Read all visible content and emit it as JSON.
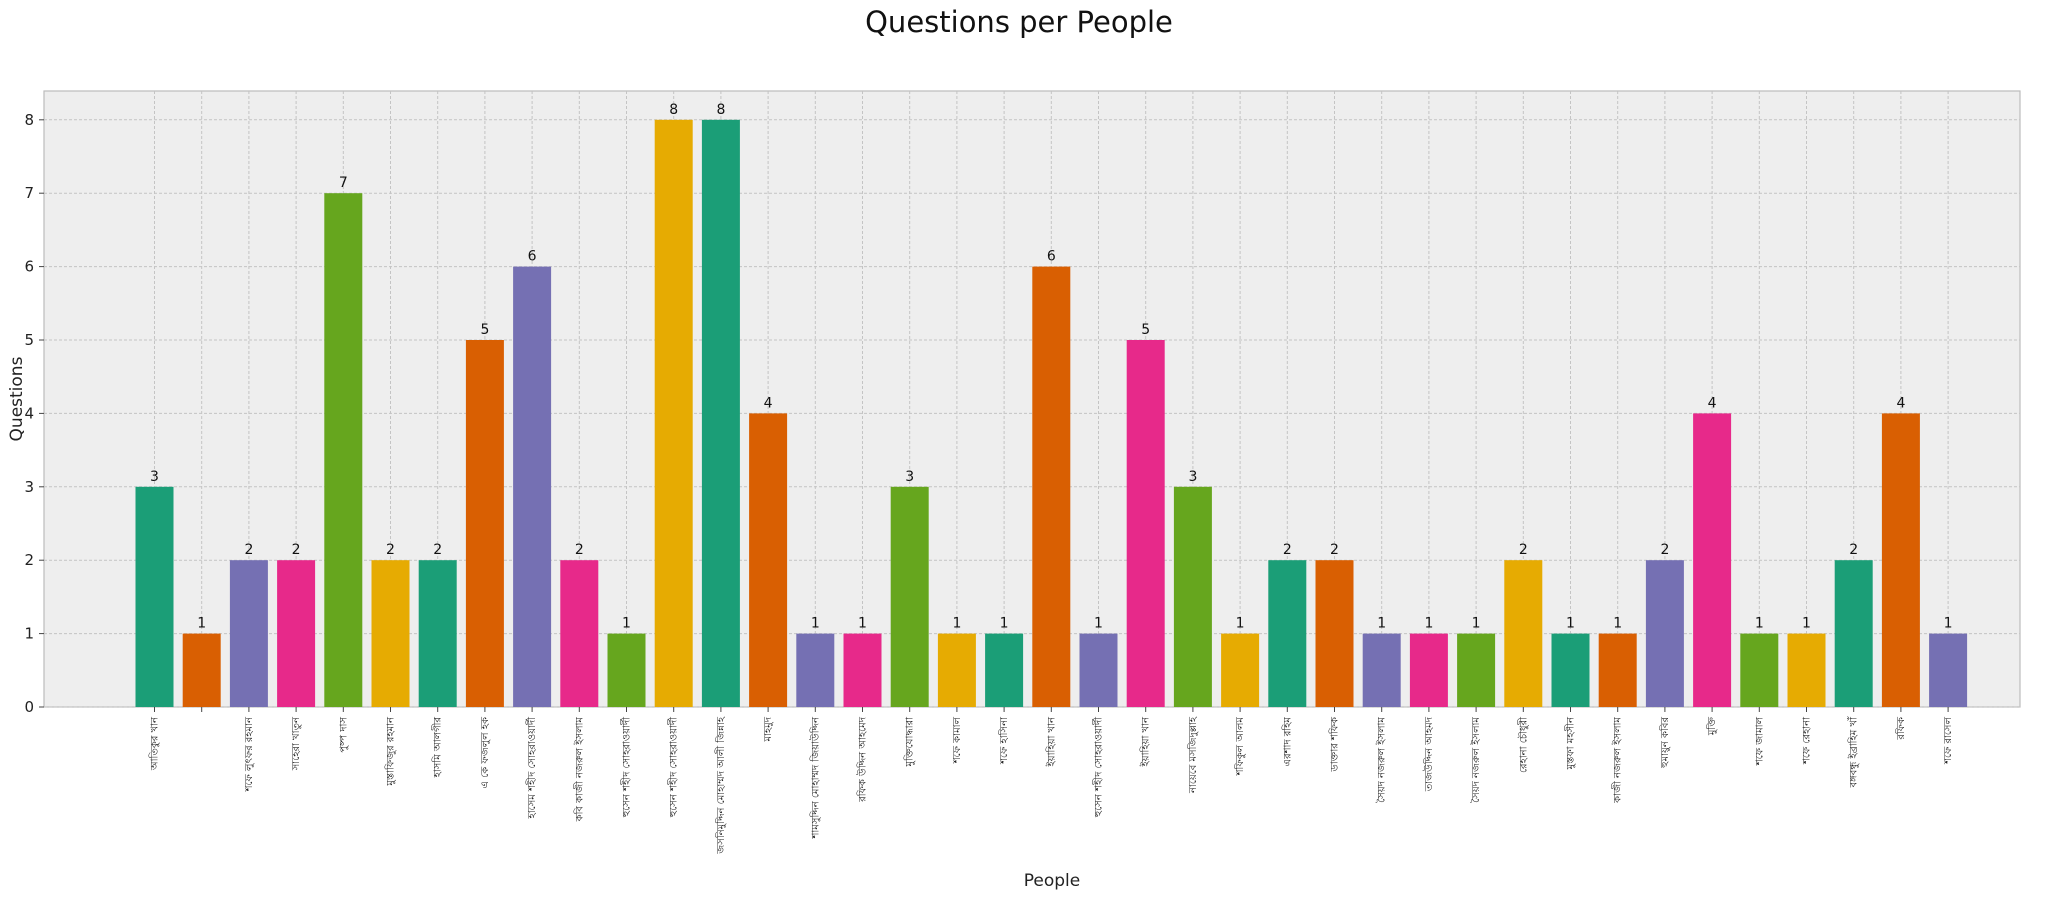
{
  "chart_data": {
    "type": "bar",
    "title": "Questions per People",
    "xlabel": "People",
    "ylabel": "Questions",
    "ylim": [
      0,
      8.4
    ],
    "yticks": [
      0,
      1,
      2,
      3,
      4,
      5,
      6,
      7,
      8
    ],
    "grid": true,
    "legend": "none",
    "palette": [
      "#1b9e77",
      "#d95f02",
      "#7570b3",
      "#e7298a",
      "#66a61e",
      "#e6ab02"
    ],
    "background": "#eeeeee",
    "categories": [
      "আতিকুর খান",
      "",
      "শফে লুৎফর রহমান",
      "সাহেরা খাতুন",
      "পুষ্প দাস",
      "মুস্তাফিজুর রহমান",
      "হাসমি আলগীর",
      "এ কে ফজলুল হক",
      "হাসেম শহীদ সোহরাওয়ার্দী",
      "কবি কাজী নজরুল ইসলাম",
      "হুসেন শহীদ সোহরাওয়ার্দী",
      "হুসেন শহীদ সোহরাওয়ার্দী",
      "জসনিমুদ্দিন মোহাম্মদ আলী জিন্নাহ",
      "মাহমুদ",
      "শামসুদ্দিন মোহাম্মদ জিয়াউদ্দিন",
      "রফিক উদ্দিন আহমেদ",
      "মুক্তিযোদ্ধারা",
      "শফে কামাল",
      "শফে হাসিনা",
      "ইয়াহিয়া খান",
      "হুসেন শহীদ সোহরাওয়ার্দী",
      "ইয়াহিয়া খান",
      "নায়েবে মসজিদুল্লাহ",
      "শফিকুল আলম",
      "এরশাদ রহিম",
      "ডাক্তার শফিক",
      "সৈয়দ নজরুল ইসলাম",
      "তাজউদ্দিন আহমদ",
      "সৈয়দ নজরুল ইসলাম",
      "রেহানা চৌধুরী",
      "মুস্তফা মহসীন",
      "কাজী নজরুল ইসলাম",
      "হুমায়ুন কবির",
      "মুক্তি",
      "শফে জামাল",
      "শফে রেহানা",
      "বঙ্গবন্ধু ইব্রাহিম খাঁ",
      "রফিক",
      "শফে রাসেল"
    ],
    "values": [
      3,
      1,
      2,
      2,
      7,
      2,
      2,
      5,
      6,
      2,
      1,
      8,
      8,
      4,
      1,
      1,
      3,
      1,
      1,
      6,
      1,
      5,
      3,
      1,
      2,
      2,
      1,
      1,
      1,
      2,
      1,
      1,
      2,
      4,
      1,
      1,
      2,
      4,
      1
    ]
  }
}
